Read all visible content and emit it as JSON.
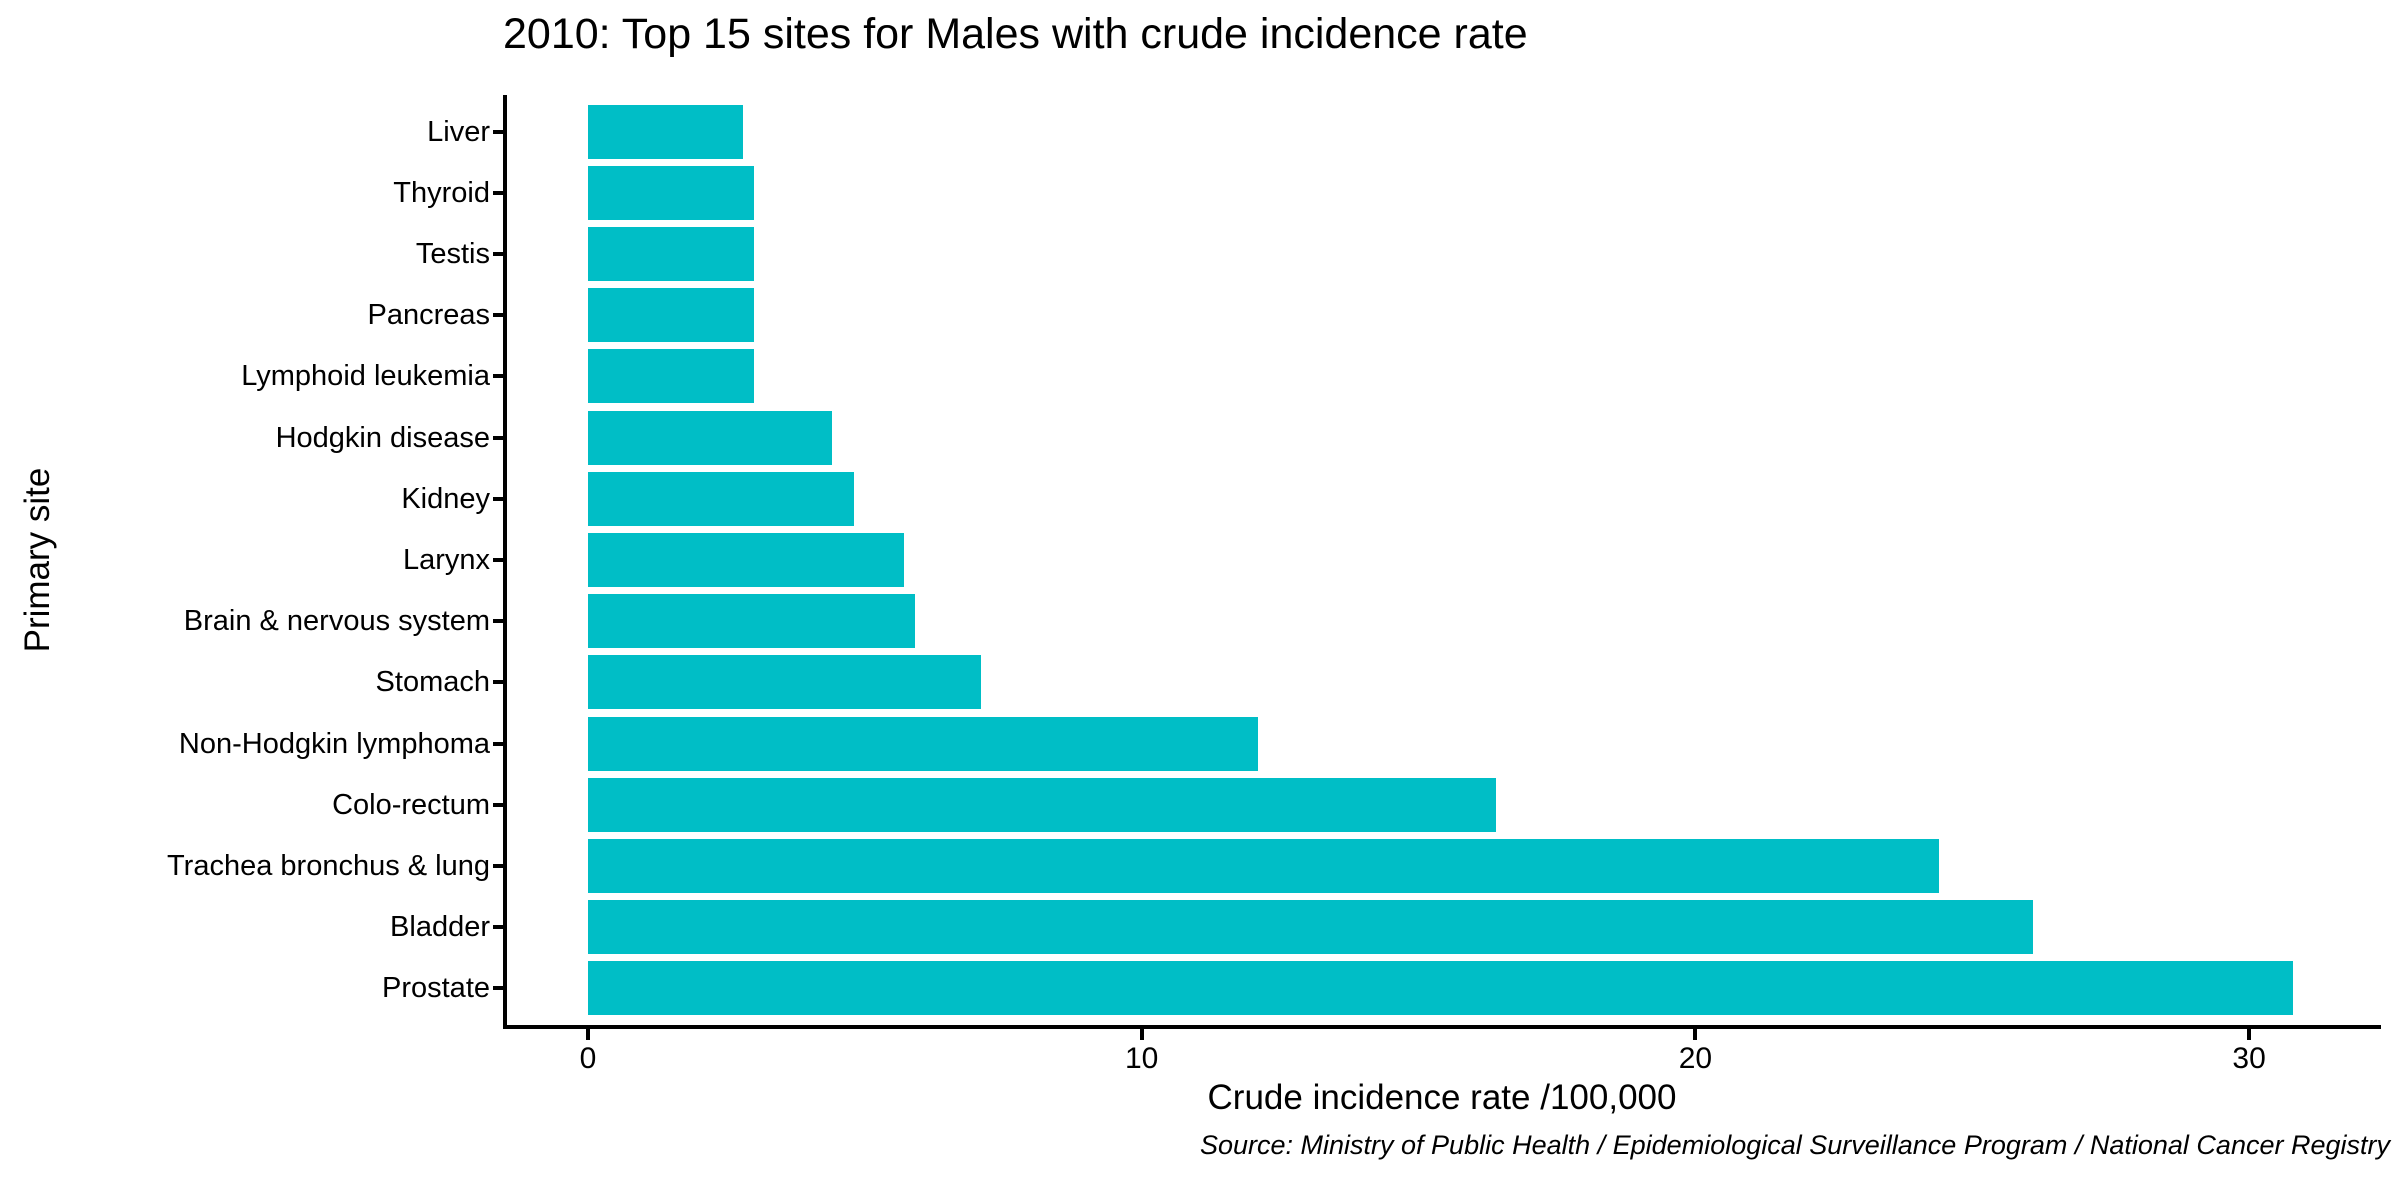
{
  "chart_data": {
    "type": "bar",
    "orientation": "horizontal",
    "title": "2010: Top 15 sites for Males with crude incidence rate",
    "xlabel": "Crude incidence rate /100,000",
    "ylabel": "Primary site",
    "caption": "Source: Ministry of Public Health / Epidemiological Surveillance Program / National Cancer Registry",
    "categories": [
      "Liver",
      "Thyroid",
      "Testis",
      "Pancreas",
      "Lymphoid leukemia",
      "Hodgkin disease",
      "Kidney",
      "Larynx",
      "Brain & nervous system",
      "Stomach",
      "Non-Hodgkin lymphoma",
      "Colo-rectum",
      "Trachea bronchus & lung",
      "Bladder",
      "Prostate"
    ],
    "values": [
      2.8,
      3.0,
      3.0,
      3.0,
      3.0,
      4.4,
      4.8,
      5.7,
      5.9,
      7.1,
      12.1,
      16.4,
      24.4,
      26.1,
      30.8
    ],
    "x_ticks": [
      0,
      10,
      20,
      30
    ],
    "xlim": [
      0,
      32.4
    ],
    "grid": false,
    "legend_position": "none",
    "bar_color": "#00BEC6",
    "axis_color": "#000000",
    "text_color": "#000000"
  }
}
